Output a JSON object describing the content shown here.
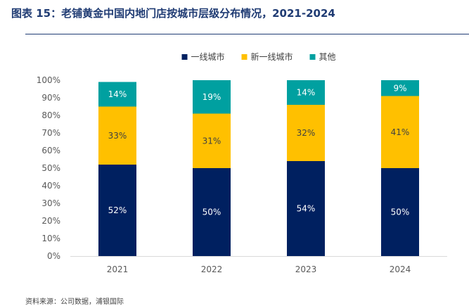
{
  "header": {
    "title": "图表 15：老铺黄金中国内地门店按城市层级分布情况，2021-2024"
  },
  "footer": {
    "source": "资料来源：公司数据，浦银国际"
  },
  "chart_data": {
    "type": "bar",
    "stacked": true,
    "categories": [
      "2021",
      "2022",
      "2023",
      "2024"
    ],
    "series": [
      {
        "name": "一线城市",
        "values": [
          52,
          50,
          54,
          50
        ],
        "labels": [
          "52%",
          "50%",
          "54%",
          "50%"
        ],
        "color": "#002060",
        "label_color": "#ffffff"
      },
      {
        "name": "新一线城市",
        "values": [
          33,
          31,
          32,
          41
        ],
        "labels": [
          "33%",
          "31%",
          "32%",
          "41%"
        ],
        "color": "#ffc000",
        "label_color": "#404040"
      },
      {
        "name": "其他",
        "values": [
          14,
          19,
          14,
          9
        ],
        "labels": [
          "14%",
          "19%",
          "14%",
          "9%"
        ],
        "color": "#00a0a0",
        "label_color": "#ffffff"
      }
    ],
    "ylim": [
      0,
      100
    ],
    "yticks": [
      "0%",
      "10%",
      "20%",
      "30%",
      "40%",
      "50%",
      "60%",
      "70%",
      "80%",
      "90%",
      "100%"
    ],
    "grid": false,
    "legend_position": "top-center"
  }
}
